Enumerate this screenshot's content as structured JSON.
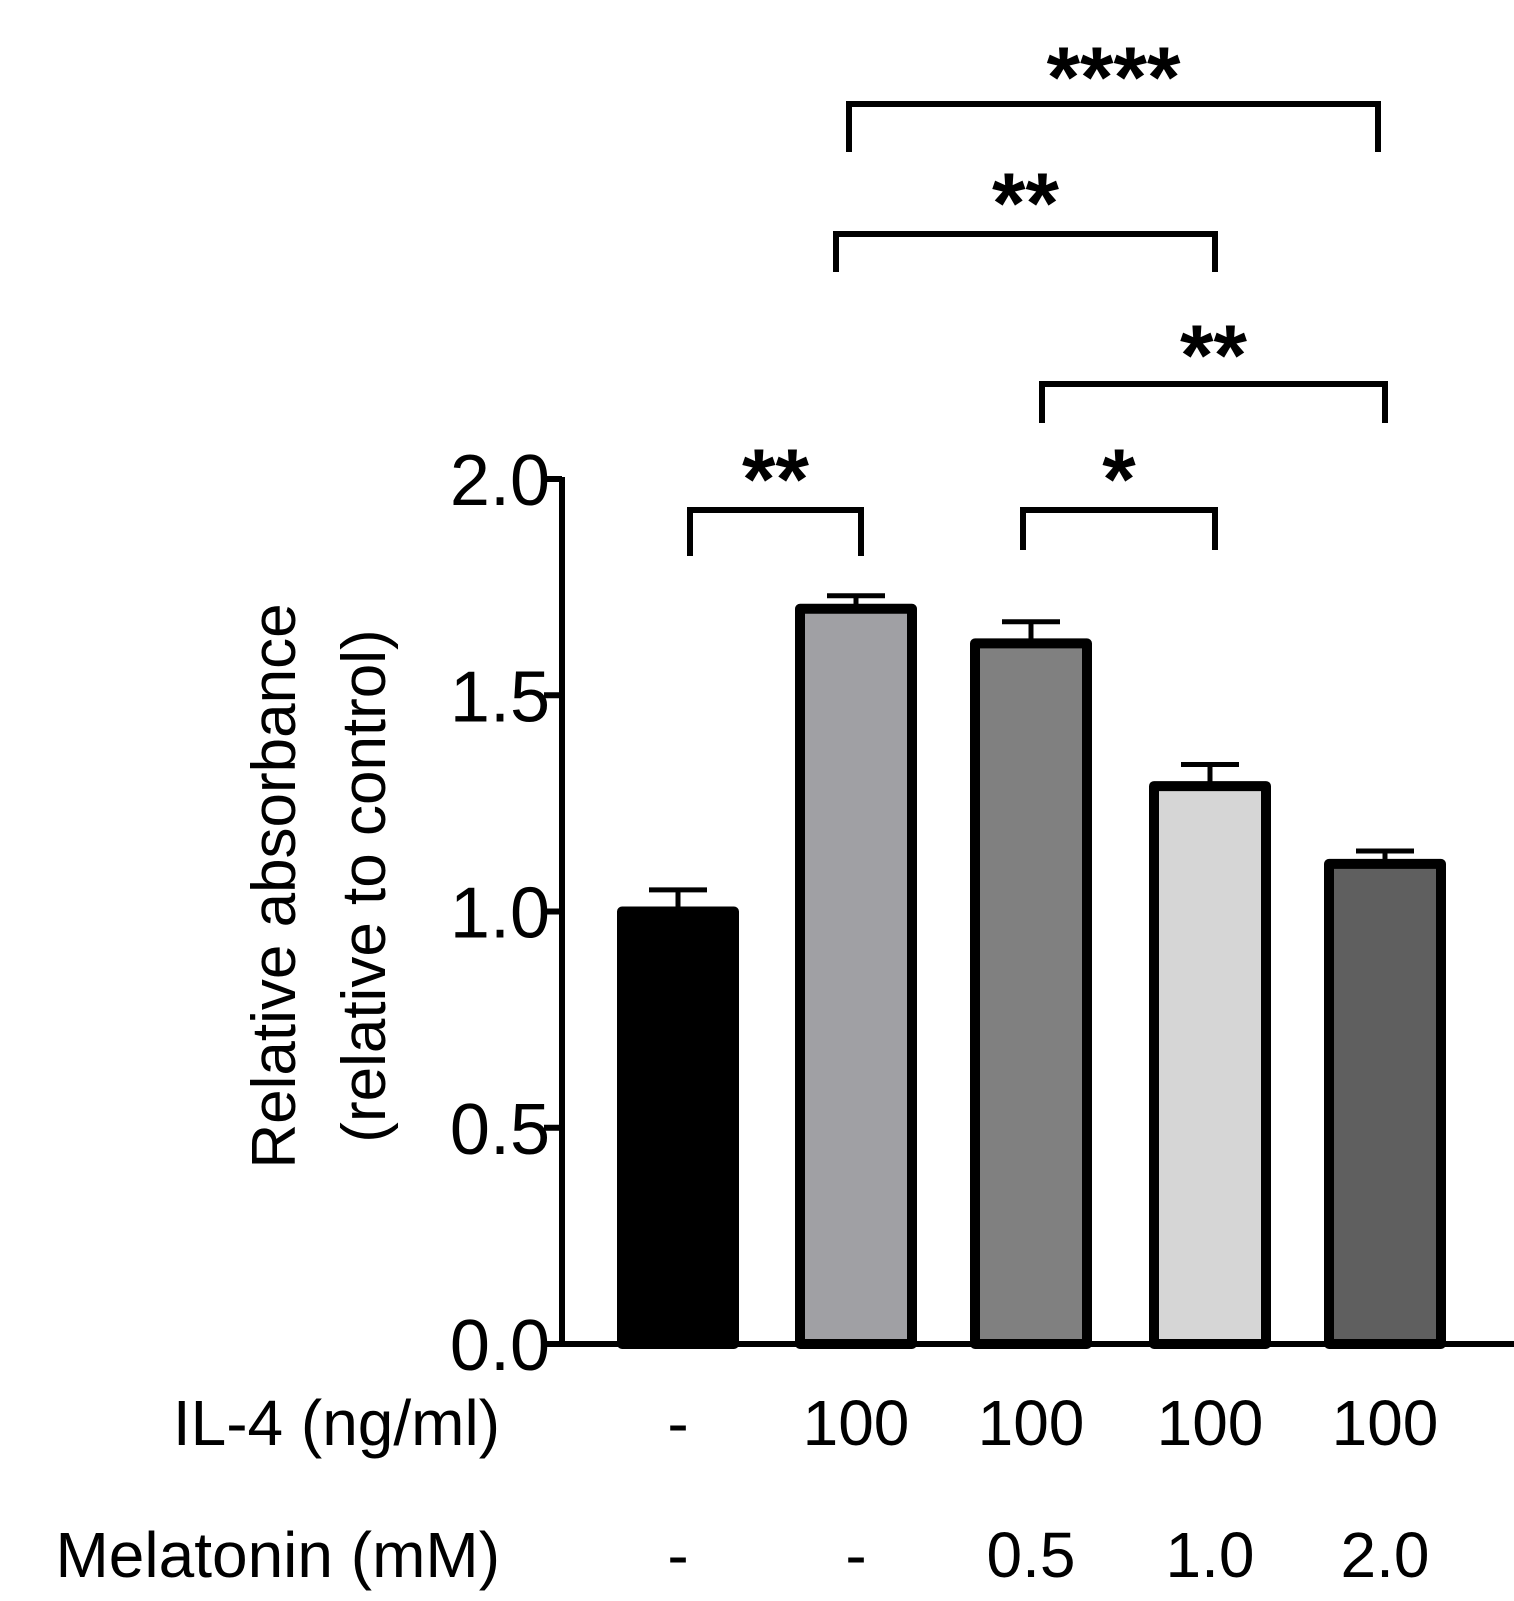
{
  "chart_data": {
    "type": "bar",
    "title": "",
    "ylabel_line1": "Relative absorbance",
    "ylabel_line2": "(relative to control)",
    "ylim": [
      0,
      2.0
    ],
    "yticks": [
      0.0,
      0.5,
      1.0,
      1.5,
      2.0
    ],
    "ytick_labels": [
      "0.0",
      "0.5",
      "1.0",
      "1.5",
      "2.0"
    ],
    "bars": [
      {
        "value": 1.0,
        "error": 0.05,
        "color": "#000000"
      },
      {
        "value": 1.7,
        "error": 0.03,
        "color": "#a0a0a4"
      },
      {
        "value": 1.62,
        "error": 0.05,
        "color": "#808080"
      },
      {
        "value": 1.29,
        "error": 0.05,
        "color": "#d6d6d6"
      },
      {
        "value": 1.11,
        "error": 0.03,
        "color": "#5f5f5f"
      }
    ],
    "conditions": [
      {
        "label": "IL-4 (ng/ml)",
        "values": [
          "-",
          "100",
          "100",
          "100",
          "100"
        ]
      },
      {
        "label": "Melatonin (mM)",
        "values": [
          "-",
          "-",
          "0.5",
          "1.0",
          "2.0"
        ]
      }
    ],
    "significance": [
      {
        "from": 0,
        "to": 1,
        "stars": "**"
      },
      {
        "from": 2,
        "to": 3,
        "stars": "*"
      },
      {
        "from": 2,
        "to": 4,
        "stars": "**"
      },
      {
        "from": 1,
        "to": 3,
        "stars": "**"
      },
      {
        "from": 1,
        "to": 4,
        "stars": "****"
      }
    ]
  }
}
